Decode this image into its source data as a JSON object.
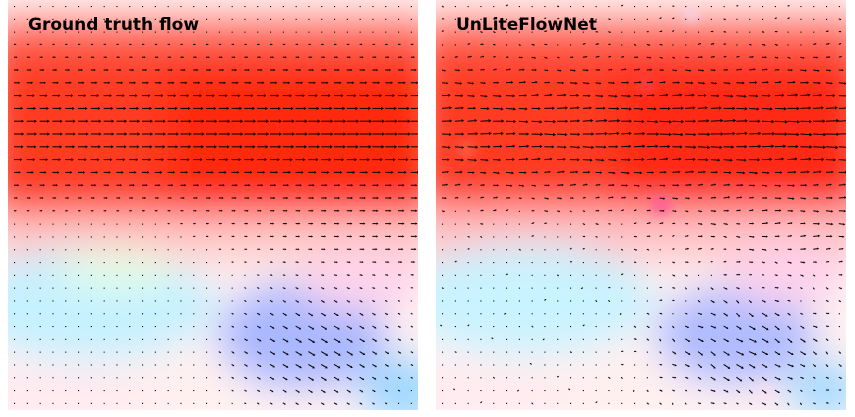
{
  "panels": [
    {
      "title": "Ground truth flow"
    },
    {
      "title": "UnLiteFlowNet"
    }
  ],
  "colors": {
    "flow_red": "#ff3311",
    "flow_pink": "#ffd9dc",
    "flow_blue": "#9fb6ff",
    "flow_cyan": "#bff2ff",
    "flow_green": "#dcffe6",
    "arrow": "#000000"
  }
}
